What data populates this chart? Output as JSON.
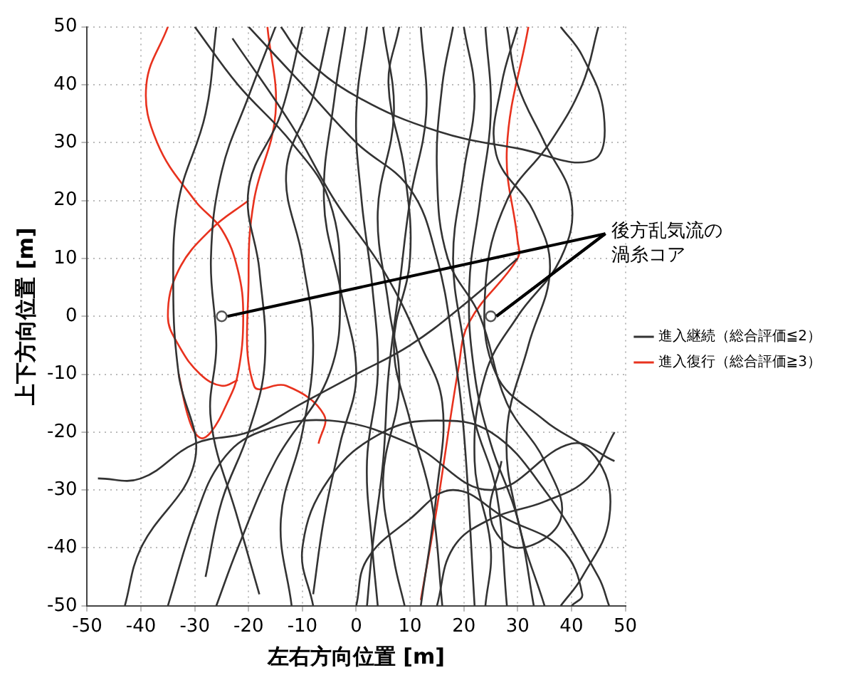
{
  "chart_data": {
    "type": "line",
    "xlabel": "左右方向位置 [m]",
    "ylabel": "上下方向位置 [m]",
    "xlim": [
      -50,
      50
    ],
    "ylim": [
      -50,
      50
    ],
    "xticks": [
      -50,
      -40,
      -30,
      -20,
      -10,
      0,
      10,
      20,
      30,
      40,
      50
    ],
    "yticks": [
      -50,
      -40,
      -30,
      -20,
      -10,
      0,
      10,
      20,
      30,
      40,
      50
    ],
    "grid": true,
    "legend": "right",
    "marker": "none",
    "annotations": [
      {
        "text": "後方乱気流の渦糸コア",
        "x": 25,
        "y": 0
      }
    ],
    "series": [
      {
        "name": "進入継続（総合評価≦2）",
        "color": "#333333",
        "x": [
          -26,
          -28,
          -33,
          -34,
          -33,
          -30,
          -40,
          -43
        ],
        "values": [
          50,
          35,
          20,
          5,
          -10,
          -25,
          -40,
          -50
        ]
      },
      {
        "color": "#333333",
        "x": [
          -15,
          -20,
          -25,
          -27,
          -26,
          -27,
          -22,
          -18
        ],
        "values": [
          50,
          38,
          25,
          10,
          -5,
          -18,
          -35,
          -48
        ]
      },
      {
        "color": "#333333",
        "x": [
          -10,
          -14,
          -20,
          -18,
          -17,
          -20,
          -25,
          -28
        ],
        "values": [
          50,
          35,
          22,
          8,
          -8,
          -20,
          -32,
          -45
        ]
      },
      {
        "color": "#333333",
        "x": [
          -5,
          -8,
          -13,
          -10,
          -8,
          -10,
          -14,
          -12
        ],
        "values": [
          50,
          38,
          25,
          10,
          -5,
          -20,
          -35,
          -50
        ]
      },
      {
        "color": "#333333",
        "x": [
          -2,
          -4,
          -6,
          -3,
          0,
          -3,
          -6,
          -8
        ],
        "values": [
          50,
          38,
          20,
          5,
          -10,
          -22,
          -35,
          -48
        ]
      },
      {
        "color": "#333333",
        "x": [
          2,
          0,
          1,
          3,
          4,
          2,
          3,
          4
        ],
        "values": [
          50,
          35,
          20,
          5,
          -10,
          -25,
          -40,
          -50
        ]
      },
      {
        "color": "#333333",
        "x": [
          5,
          7,
          4,
          6,
          8,
          5,
          7,
          9
        ],
        "values": [
          50,
          35,
          18,
          2,
          -12,
          -28,
          -42,
          -50
        ]
      },
      {
        "color": "#333333",
        "x": [
          8,
          6,
          9,
          10,
          7,
          10,
          14,
          16
        ],
        "values": [
          50,
          40,
          25,
          10,
          -5,
          -18,
          -32,
          -50
        ]
      },
      {
        "color": "#333333",
        "x": [
          -20,
          -10,
          0,
          10,
          15,
          18,
          20,
          22
        ],
        "values": [
          50,
          40,
          30,
          22,
          10,
          -5,
          -20,
          -50
        ]
      },
      {
        "color": "#333333",
        "x": [
          -23,
          -12,
          -4,
          5,
          12,
          16,
          15,
          12
        ],
        "values": [
          48,
          33,
          20,
          8,
          -5,
          -15,
          -30,
          -50
        ]
      },
      {
        "color": "#333333",
        "x": [
          20,
          22,
          20,
          18,
          20,
          22,
          26,
          28
        ],
        "values": [
          50,
          38,
          25,
          10,
          -5,
          -18,
          -30,
          -50
        ]
      },
      {
        "color": "#333333",
        "x": [
          24,
          25,
          23,
          21,
          22,
          25,
          30,
          33
        ],
        "values": [
          50,
          35,
          20,
          5,
          -10,
          -22,
          -35,
          -50
        ]
      },
      {
        "color": "#333333",
        "x": [
          28,
          30,
          35,
          40,
          38,
          30,
          24,
          22,
          25,
          24
        ],
        "values": [
          50,
          40,
          30,
          20,
          10,
          0,
          -10,
          -25,
          -40,
          -50
        ]
      },
      {
        "color": "#333333",
        "x": [
          38,
          42,
          46,
          44,
          30,
          15,
          0,
          -10,
          -14
        ],
        "values": [
          50,
          45,
          35,
          27,
          29,
          32,
          38,
          45,
          50
        ]
      },
      {
        "color": "#333333",
        "x": [
          45,
          42,
          36,
          28,
          24,
          26,
          35,
          45,
          47,
          42,
          38
        ],
        "values": [
          50,
          40,
          30,
          20,
          5,
          -10,
          -18,
          -25,
          -35,
          -45,
          -50
        ]
      },
      {
        "color": "#333333",
        "x": [
          18,
          16,
          15,
          17,
          23,
          28,
          35,
          38,
          30,
          25,
          27
        ],
        "values": [
          50,
          40,
          25,
          10,
          0,
          -15,
          -25,
          -35,
          -40,
          -35,
          -25
        ]
      },
      {
        "color": "#333333",
        "x": [
          -48,
          -40,
          -30,
          -20,
          -10,
          0,
          10,
          20,
          30
        ],
        "values": [
          -28,
          -28,
          -22,
          -20,
          -15,
          -10,
          -5,
          2,
          10
        ]
      },
      {
        "color": "#333333",
        "x": [
          -35,
          -30,
          -25,
          -18,
          -5,
          10,
          25,
          40,
          48
        ],
        "values": [
          -50,
          -35,
          -25,
          -20,
          -18,
          -22,
          -30,
          -22,
          -25
        ]
      },
      {
        "color": "#333333",
        "x": [
          -8,
          -10,
          -5,
          5,
          15,
          25,
          35,
          45,
          47
        ],
        "values": [
          -50,
          -40,
          -28,
          -20,
          -18,
          -20,
          -30,
          -45,
          -50
        ]
      },
      {
        "color": "#333333",
        "x": [
          0,
          2,
          10,
          18,
          28,
          38,
          42,
          40
        ],
        "values": [
          -50,
          -42,
          -35,
          -30,
          -35,
          -40,
          -48,
          -50
        ]
      },
      {
        "color": "#333333",
        "x": [
          12,
          13,
          10,
          8,
          6,
          5,
          3,
          2
        ],
        "values": [
          50,
          35,
          20,
          5,
          -10,
          -25,
          -40,
          -50
        ]
      },
      {
        "color": "#333333",
        "x": [
          -30,
          -22,
          -12,
          -5,
          -3,
          -5,
          -15,
          -22,
          -26
        ],
        "values": [
          50,
          40,
          30,
          20,
          5,
          -10,
          -25,
          -40,
          -50
        ]
      },
      {
        "color": "#333333",
        "x": [
          30,
          27,
          26,
          33,
          36,
          32,
          28,
          30,
          35
        ],
        "values": [
          50,
          40,
          28,
          18,
          8,
          -5,
          -20,
          -35,
          -50
        ]
      },
      {
        "color": "#333333",
        "x": [
          15,
          18,
          25,
          35,
          43,
          48
        ],
        "values": [
          -50,
          -40,
          -35,
          -32,
          -28,
          -20
        ]
      },
      {
        "name": "進入復行（総合評価≧3）",
        "color": "#e8321e",
        "x": [
          -35,
          -39,
          -37,
          -30,
          -25,
          -22,
          -21,
          -22,
          -24,
          -27,
          -29,
          -31,
          -33
        ],
        "values": [
          50,
          40,
          30,
          20,
          15,
          8,
          0,
          -10,
          -15,
          -20,
          -21,
          -18,
          -10
        ]
      },
      {
        "color": "#e8321e",
        "x": [
          -20,
          -27,
          -33,
          -35,
          -33,
          -29,
          -25,
          -22
        ],
        "values": [
          20,
          15,
          8,
          0,
          -5,
          -10,
          -12,
          -11
        ]
      },
      {
        "color": "#e8321e",
        "x": [
          -16.5,
          -15,
          -19,
          -20,
          -19,
          -13,
          -6,
          -7
        ],
        "values": [
          50,
          35,
          20,
          7,
          -12,
          -12,
          -17,
          -22
        ]
      },
      {
        "color": "#e8321e",
        "x": [
          32,
          28,
          30,
          30,
          21,
          19,
          15,
          12
        ],
        "values": [
          50,
          29,
          13,
          10,
          -1,
          -9,
          -33,
          -49
        ]
      },
      {
        "type": "scatter",
        "marker": "circle",
        "color": "#555555",
        "x": [
          -25,
          25
        ],
        "values": [
          0,
          0
        ]
      }
    ]
  }
}
